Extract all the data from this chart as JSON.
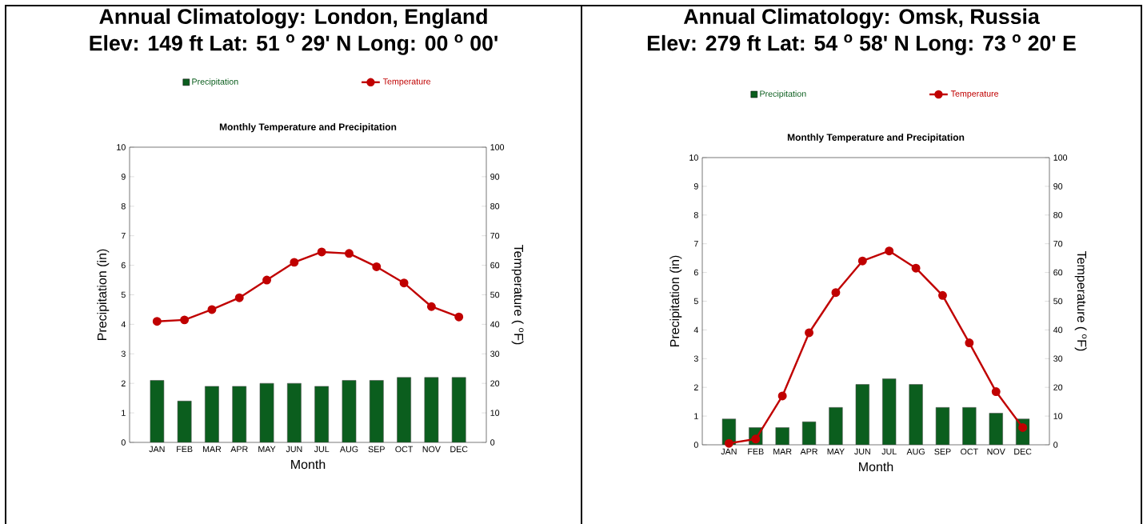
{
  "chart_data": [
    {
      "type": "bar",
      "title": "Annual Climatology: London, England",
      "subtitle": "Elev: 149 ft    Lat: 51 $^{o}$ 29' N    Long: 00 $^{o}$ 00'",
      "annotations": [
        "Monthly Temperature and Precipitation"
      ],
      "xlabel": "Month",
      "ylabel": "Precipitation (in)",
      "y2label": "Temperature ( $^{o}$F)",
      "categories": [
        "JAN",
        "FEB",
        "MAR",
        "APR",
        "MAY",
        "JUN",
        "JUL",
        "AUG",
        "SEP",
        "OCT",
        "NOV",
        "DEC"
      ],
      "series": [
        {
          "name": "Precipitation",
          "color": "#0b5e1e",
          "values": [
            2.1,
            1.4,
            1.9,
            1.9,
            2.0,
            2.0,
            1.9,
            2.1,
            2.1,
            2.2,
            2.2,
            2.2
          ]
        },
        {
          "name": "Temperature",
          "type": "line",
          "axis": "y2",
          "color": "#c00000",
          "values": [
            41,
            41.5,
            45,
            49,
            55,
            61,
            64.5,
            64,
            59.5,
            54,
            46,
            42.5
          ]
        }
      ],
      "ylim": [
        0,
        10
      ],
      "yticks": [
        0,
        1,
        2,
        3,
        4,
        5,
        6,
        7,
        8,
        9,
        10
      ],
      "y2lim": [
        0,
        100
      ],
      "y2ticks": [
        0,
        10,
        20,
        30,
        40,
        50,
        60,
        70,
        80,
        90,
        100
      ],
      "legend": "top",
      "marker": "circle"
    },
    {
      "type": "bar",
      "title": "Annual Climatology: Omsk, Russia",
      "subtitle": "Elev: 279 ft    Lat: 54 $^{o}$ 58' N    Long: 73 $^{o}$ 20' E",
      "annotations": [
        "Monthly Temperature and Precipitation"
      ],
      "xlabel": "Month",
      "ylabel": "Precipitation (in)",
      "y2label": "Temperature ( $^{o}$F)",
      "categories": [
        "JAN",
        "FEB",
        "MAR",
        "APR",
        "MAY",
        "JUN",
        "JUL",
        "AUG",
        "SEP",
        "OCT",
        "NOV",
        "DEC"
      ],
      "series": [
        {
          "name": "Precipitation",
          "color": "#0b5e1e",
          "values": [
            0.9,
            0.6,
            0.6,
            0.8,
            1.3,
            2.1,
            2.3,
            2.1,
            1.3,
            1.3,
            1.1,
            0.9
          ]
        },
        {
          "name": "Temperature",
          "type": "line",
          "axis": "y2",
          "color": "#c00000",
          "values": [
            0.5,
            2,
            17,
            39,
            53,
            64,
            67.5,
            61.5,
            52,
            35.5,
            18.5,
            6
          ]
        }
      ],
      "ylim": [
        0,
        10
      ],
      "yticks": [
        0,
        1,
        2,
        3,
        4,
        5,
        6,
        7,
        8,
        9,
        10
      ],
      "y2lim": [
        0,
        100
      ],
      "y2ticks": [
        0,
        10,
        20,
        30,
        40,
        50,
        60,
        70,
        80,
        90,
        100
      ],
      "legend": "top",
      "marker": "circle"
    }
  ]
}
